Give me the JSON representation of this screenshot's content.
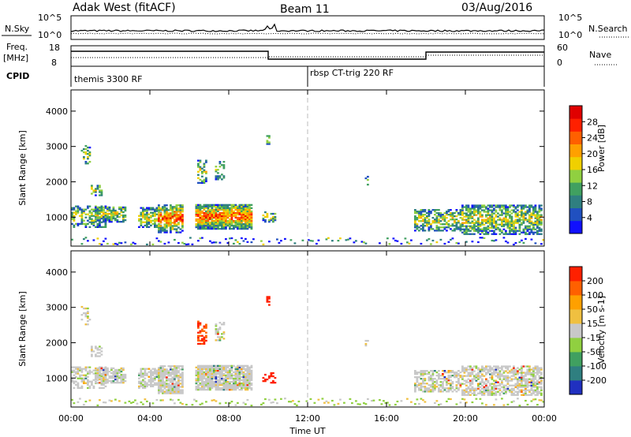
{
  "header": {
    "station": "Adak West (fitACF)",
    "beam": "Beam 11",
    "date": "03/Aug/2016"
  },
  "top_panels": {
    "nsky_label": "N.Sky",
    "nsky_ticks": [
      "10^5",
      "10^0"
    ],
    "nsearch_label": "N.Search",
    "nsearch_ticks": [
      "10^5",
      "10^0"
    ],
    "freq_label": "Freq.",
    "freq_unit": "[MHz]",
    "freq_ticks": [
      "18",
      "8"
    ],
    "nave_label": "Nave",
    "nave_ticks": [
      "60",
      "0"
    ],
    "cpid_label": "CPID",
    "cpid_segments": [
      {
        "name": "themis 3300 RF",
        "start_hour": 0
      },
      {
        "name": "rbsp CT-trig 220 RF",
        "start_hour": 12
      }
    ]
  },
  "chart_data": [
    {
      "type": "heatmap",
      "name": "power",
      "xlabel": "Time UT",
      "ylabel": "Slant Range [km]",
      "xlim": [
        0,
        24
      ],
      "ylim": [
        180,
        4600
      ],
      "yticks": [
        "1000",
        "2000",
        "3000",
        "4000"
      ],
      "colorbar_label": "Power [dB]",
      "colorbar_ticks": [
        "28",
        "24",
        "20",
        "16",
        "12",
        "8",
        "4"
      ],
      "colorbar_range": [
        0,
        32
      ],
      "colors": [
        "#1010ff",
        "#2050c0",
        "#2f7f80",
        "#40a060",
        "#90d040",
        "#f0d000",
        "#ffa000",
        "#ff6000",
        "#ff2000",
        "#e00000"
      ]
    },
    {
      "type": "heatmap",
      "name": "velocity",
      "xlabel": "Time UT",
      "ylabel": "Slant Range [km]",
      "xlim": [
        0,
        24
      ],
      "ylim": [
        180,
        4600
      ],
      "yticks": [
        "1000",
        "2000",
        "3000",
        "4000"
      ],
      "colorbar_label": "Velocity [m s-1]",
      "colorbar_ticks": [
        "200",
        "100",
        "50",
        "15",
        "-15",
        "-50",
        "-100",
        "-200"
      ],
      "colors": [
        "#2030c0",
        "#2f7f80",
        "#40a060",
        "#90d040",
        "#c8c8c8",
        "#f0c040",
        "#ffa000",
        "#ff6000",
        "#ff2000"
      ]
    }
  ],
  "x_axis": {
    "ticks": [
      "00:00",
      "04:00",
      "08:00",
      "12:00",
      "16:00",
      "20:00",
      "00:00"
    ],
    "label": "Time UT"
  }
}
